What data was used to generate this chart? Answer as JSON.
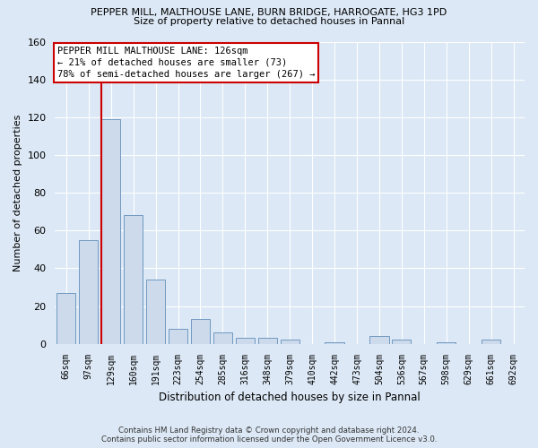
{
  "title1": "PEPPER MILL, MALTHOUSE LANE, BURN BRIDGE, HARROGATE, HG3 1PD",
  "title2": "Size of property relative to detached houses in Pannal",
  "xlabel": "Distribution of detached houses by size in Pannal",
  "ylabel": "Number of detached properties",
  "categories": [
    "66sqm",
    "97sqm",
    "129sqm",
    "160sqm",
    "191sqm",
    "223sqm",
    "254sqm",
    "285sqm",
    "316sqm",
    "348sqm",
    "379sqm",
    "410sqm",
    "442sqm",
    "473sqm",
    "504sqm",
    "536sqm",
    "567sqm",
    "598sqm",
    "629sqm",
    "661sqm",
    "692sqm"
  ],
  "values": [
    27,
    55,
    119,
    68,
    34,
    8,
    13,
    6,
    3,
    3,
    2,
    0,
    1,
    0,
    4,
    2,
    0,
    1,
    0,
    2,
    0
  ],
  "bar_color": "#ccdaec",
  "bar_edge_color": "#7099c0",
  "vline_color": "#cc0000",
  "ylim": [
    0,
    160
  ],
  "yticks": [
    0,
    20,
    40,
    60,
    80,
    100,
    120,
    140,
    160
  ],
  "annotation_line1": "PEPPER MILL MALTHOUSE LANE: 126sqm",
  "annotation_line2": "← 21% of detached houses are smaller (73)",
  "annotation_line3": "78% of semi-detached houses are larger (267) →",
  "annotation_box_color": "#cc0000",
  "annotation_box_fill": "#ffffff",
  "footer1": "Contains HM Land Registry data © Crown copyright and database right 2024.",
  "footer2": "Contains public sector information licensed under the Open Government Licence v3.0.",
  "bg_color": "#dce8f5",
  "plot_bg_color": "#dce8f5",
  "grid_color": "#ffffff"
}
